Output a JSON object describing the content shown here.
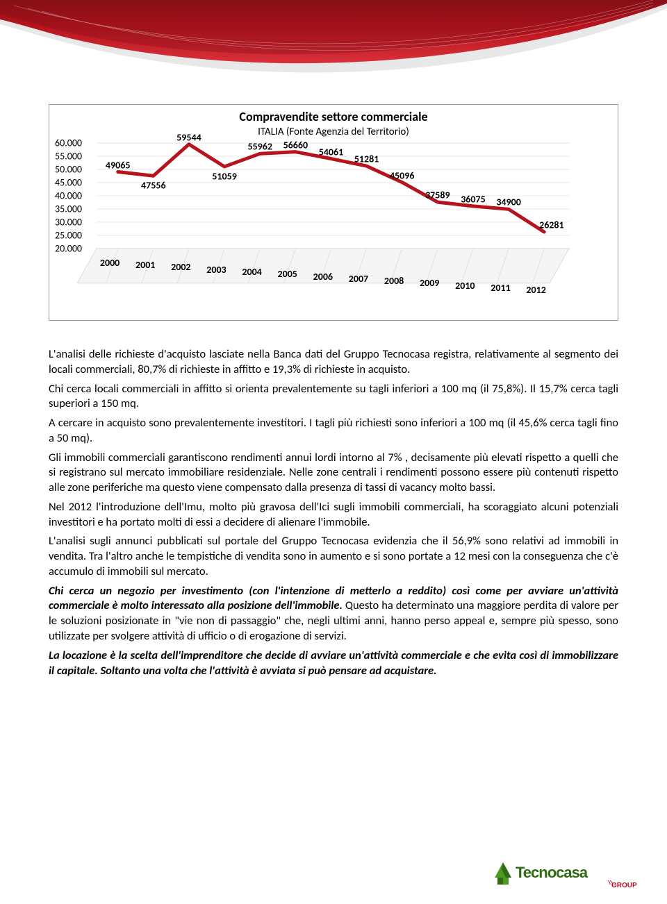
{
  "banner": {
    "swoosh_color": "#b6131d",
    "swoosh_dark": "#7d0d14",
    "swoosh_light": "#e8e8e8"
  },
  "chart": {
    "title": "Compravendite settore commerciale",
    "subtitle": "ITALIA (Fonte Agenzia del Territorio)",
    "type": "line",
    "line_color": "#b6131d",
    "line_width": 5,
    "grid_color": "#dcdcdc",
    "floor_color": "#f5f5f5",
    "border_color": "#999999",
    "ymin": 20000,
    "ymax": 60000,
    "ytick_step": 5000,
    "ylabels": [
      "60.000",
      "55.000",
      "50.000",
      "45.000",
      "40.000",
      "35.000",
      "30.000",
      "25.000",
      "20.000"
    ],
    "yvalues": [
      60000,
      55000,
      50000,
      45000,
      40000,
      35000,
      30000,
      25000,
      20000
    ],
    "categories": [
      "2000",
      "2001",
      "2002",
      "2003",
      "2004",
      "2005",
      "2006",
      "2007",
      "2008",
      "2009",
      "2010",
      "2011",
      "2012"
    ],
    "values": [
      49065,
      47556,
      59544,
      51059,
      55962,
      56660,
      54061,
      51281,
      45096,
      37589,
      36075,
      34900,
      26281
    ],
    "label_fontsize": 14,
    "title_fontsize": 18,
    "bg": "#ffffff"
  },
  "text": {
    "p1": "L'analisi delle richieste d'acquisto lasciate nella Banca dati del Gruppo Tecnocasa registra, relativamente al segmento dei locali commerciali, 80,7% di richieste in affitto e 19,3% di richieste in acquisto.",
    "p2": "Chi cerca locali commerciali in affitto si orienta prevalentemente su tagli inferiori a 100 mq  (il 75,8%). Il 15,7% cerca tagli superiori a 150 mq.",
    "p3": "A cercare in acquisto sono prevalentemente investitori. I tagli più richiesti sono inferiori a 100 mq (il 45,6% cerca tagli fino a 50 mq).",
    "p4": "Gli immobili commerciali garantiscono rendimenti annui lordi  intorno al 7% , decisamente più elevati rispetto a quelli che si registrano sul mercato immobiliare residenziale.  Nelle zone centrali i rendimenti possono essere più contenuti rispetto alle zone periferiche ma questo viene compensato dalla presenza di tassi di vacancy molto bassi.",
    "p5": "Nel 2012 l'introduzione dell'Imu, molto più gravosa dell'Ici sugli immobili commerciali, ha scoraggiato alcuni potenziali investitori e ha portato molti di essi a decidere di alienare l'immobile.",
    "p6": "L'analisi sugli annunci pubblicati sul portale del Gruppo Tecnocasa evidenzia che il 56,9% sono relativi ad immobili in vendita. Tra l'altro anche le tempistiche di vendita sono in aumento e si sono portate a 12 mesi con la conseguenza che c'è accumulo di immobili sul mercato.",
    "p7a": "Chi cerca un negozio per investimento (con l'intenzione di metterlo a reddito) così come per avviare un'attività commerciale è molto interessato alla posizione dell'immobile.",
    "p7b": " Questo ha determinato una maggiore perdita di valore per le soluzioni posizionate in \"vie non di passaggio\" che, negli  ultimi anni, hanno perso appeal e, sempre più spesso, sono utilizzate per svolgere attività di ufficio o di erogazione di servizi.",
    "p8": "La locazione è la scelta dell'imprenditore che decide di avviare un'attività commerciale e che evita così di immobilizzare il capitale. Soltanto una volta che l'attività è avviata si può pensare ad acquistare."
  },
  "logo": {
    "name": "Tecnocasa",
    "sub": "GROUP",
    "green": "#4a9b1f",
    "green_dark": "#2e6b12",
    "red": "#b6131d"
  }
}
